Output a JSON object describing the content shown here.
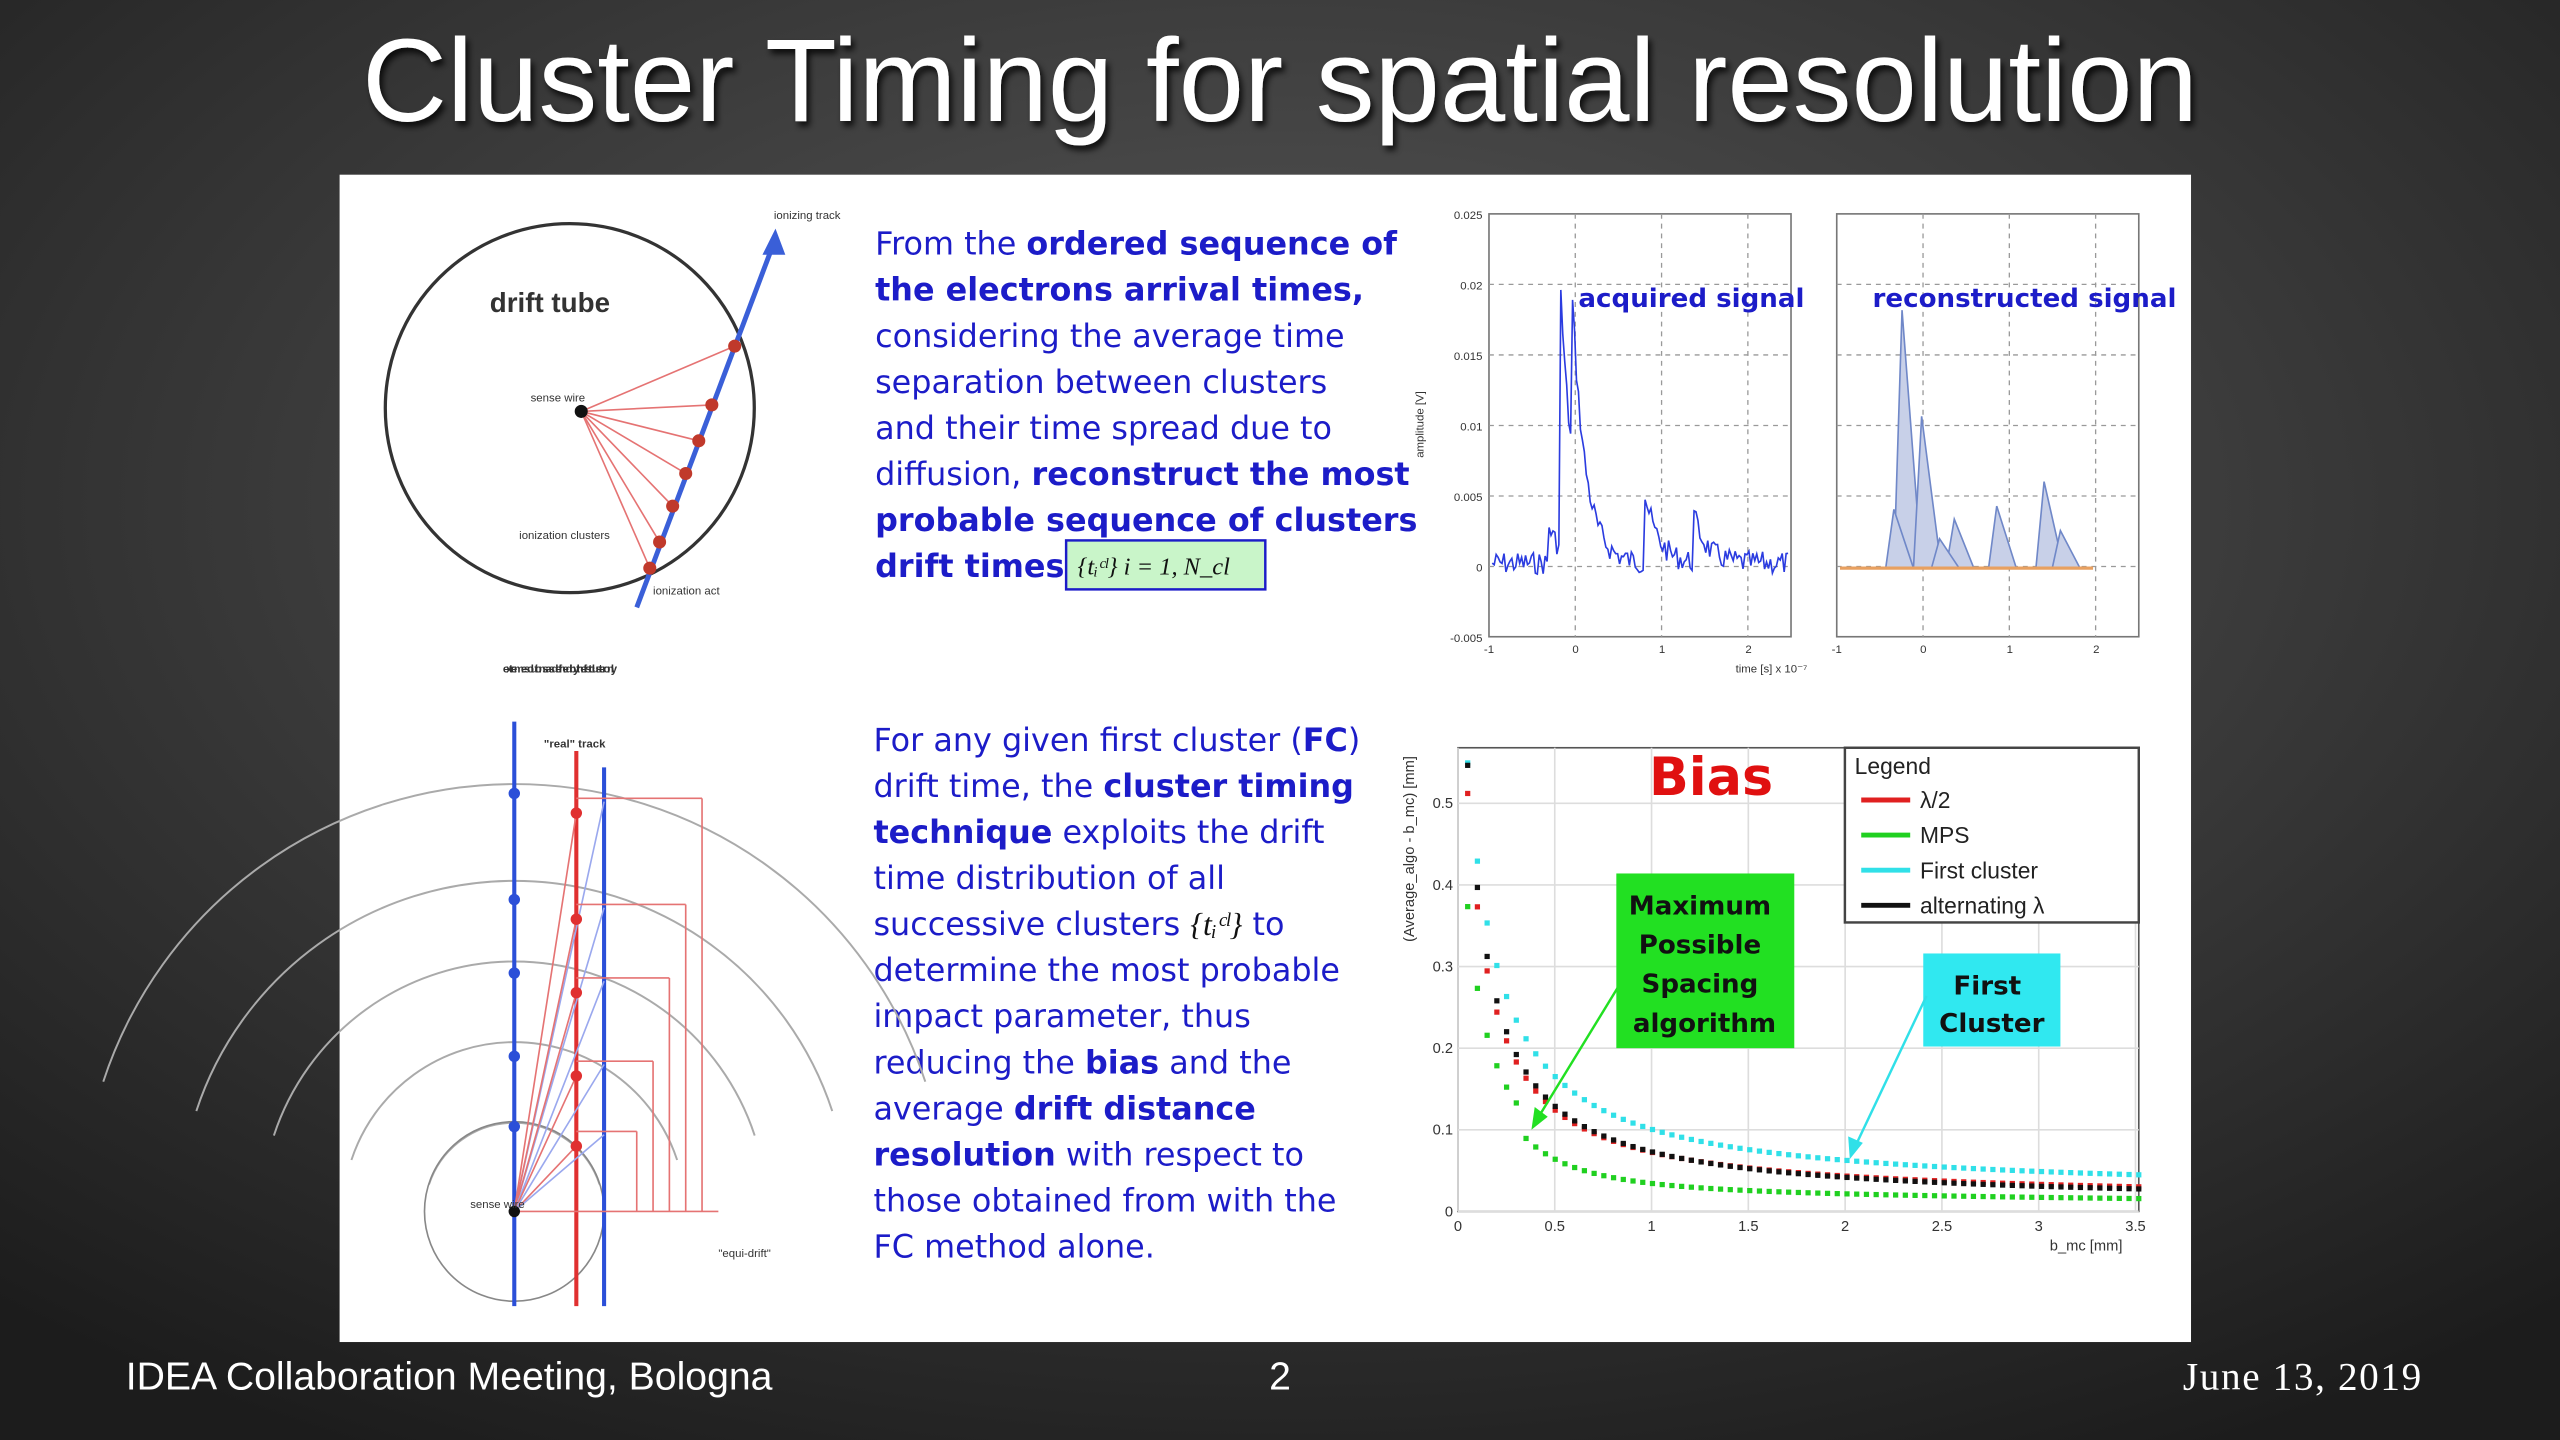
{
  "header": {
    "title": "Cluster Timing for spatial resolution"
  },
  "footer": {
    "left": "IDEA Collaboration Meeting, Bologna",
    "center": "2",
    "right": "June 13, 2019"
  },
  "paragraph1": {
    "lines": [
      [
        {
          "text": "From the "
        },
        {
          "text": "ordered sequence of",
          "bold": true
        }
      ],
      [
        {
          "text": "the electrons arrival times,",
          "bold": true
        }
      ],
      [
        {
          "text": "considering the average time"
        }
      ],
      [
        {
          "text": "separation between clusters"
        }
      ],
      [
        {
          "text": "and their time spread due to"
        }
      ],
      [
        {
          "text": "diffusion, "
        },
        {
          "text": "reconstruct the most",
          "bold": true
        }
      ],
      [
        {
          "text": "probable sequence of clusters",
          "bold": true
        }
      ],
      [
        {
          "text": "drift times:",
          "bold": true
        }
      ]
    ],
    "formula": "{tᵢᶜˡ}     i = 1, N_cl"
  },
  "paragraph2": {
    "lines": [
      [
        {
          "text": "For any given first cluster ("
        },
        {
          "text": "FC",
          "bold": true
        },
        {
          "text": ")"
        }
      ],
      [
        {
          "text": "drift time, the "
        },
        {
          "text": "cluster timing",
          "bold": true
        }
      ],
      [
        {
          "text": "technique",
          "bold": true
        },
        {
          "text": " exploits the drift"
        }
      ],
      [
        {
          "text": "time distribution of all"
        }
      ],
      [
        {
          "text": "successive clusters "
        },
        {
          "text": "{tᵢᶜˡ}",
          "formula": true
        },
        {
          "text": " to"
        }
      ],
      [
        {
          "text": "determine the most probable"
        }
      ],
      [
        {
          "text": "impact parameter, thus"
        }
      ],
      [
        {
          "text": "reducing the "
        },
        {
          "text": "bias",
          "bold": true
        },
        {
          "text": " and the"
        }
      ],
      [
        {
          "text": "average "
        },
        {
          "text": "drift distance",
          "bold": true
        }
      ],
      [
        {
          "text": "resolution",
          "bold": true
        },
        {
          "text": " with respect to"
        }
      ],
      [
        {
          "text": "those obtained from with the"
        }
      ],
      [
        {
          "text": "FC method alone."
        }
      ]
    ]
  },
  "drift_tube": {
    "title": "drift tube",
    "track": "ionizing track",
    "wire": "sense wire",
    "clusters": "ionization clusters",
    "act": "ionization act"
  },
  "cluster_diagram": {
    "extreme": "extreme solutions as defined by the first cluster only",
    "real_track": "\"real\" track",
    "wire": "sense wire",
    "equi_drift": "\"equi-drift\""
  },
  "signal_plot": {
    "acquired": "acquired signal",
    "reconstructed": "reconstructed signal",
    "y_label": "amplitude [V]",
    "y_ticks": [
      "0.025",
      "0.02",
      "0.015",
      "0.01",
      "0.005",
      "0",
      "-0.005"
    ],
    "x_ticks": [
      "-1",
      "0",
      "1",
      "2"
    ],
    "x_label": "time [s] x 10⁻⁷"
  },
  "bias_plot": {
    "title": "Bias",
    "y_label": "(Average_algo - b_mc) [mm]",
    "y_ticks": [
      "0",
      "0.1",
      "0.2",
      "0.3",
      "0.4",
      "0.5"
    ],
    "x_ticks": [
      "0",
      "0.5",
      "1",
      "1.5",
      "2",
      "2.5",
      "3",
      "3.5"
    ],
    "x_label": "b_mc [mm]",
    "legend_title": "Legend",
    "legend": [
      {
        "name": "λ/2",
        "color": "#e02020"
      },
      {
        "name": "MPS",
        "color": "#20d020"
      },
      {
        "name": "First cluster",
        "color": "#30e0e8"
      },
      {
        "name": "alternating λ",
        "color": "#111111"
      }
    ],
    "mps_note": "Maximum Possible Spacing algorithm",
    "fc_note": "First Cluster"
  }
}
